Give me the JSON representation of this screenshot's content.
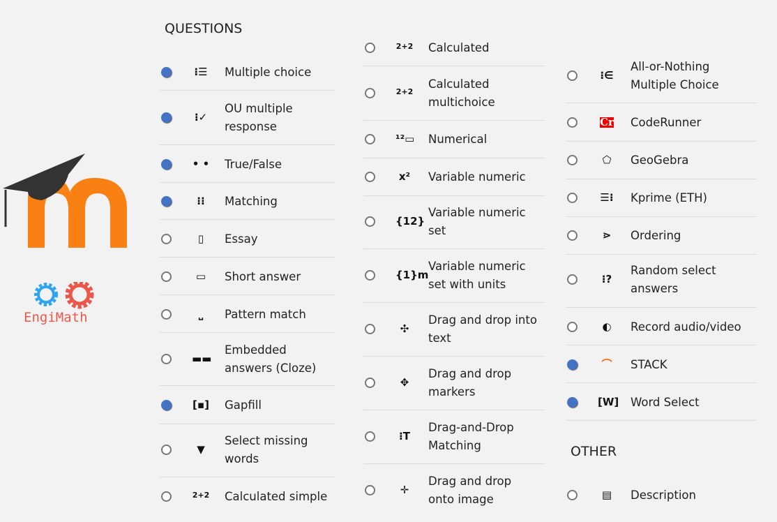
{
  "headers": {
    "questions": "QUESTIONS",
    "other": "OTHER"
  },
  "logos": {
    "moodle": "moodle",
    "engimath": "EngiMath"
  },
  "colors": {
    "selected": "#4472c4",
    "moodle_orange": "#f98012",
    "engimath_red": "#e8584b",
    "engimath_blue": "#2ea3f2"
  },
  "columns": [
    [
      {
        "label": "Multiple choice",
        "icon": "list-icon",
        "glyph": "⁝☰",
        "selected": true
      },
      {
        "label": "OU multiple response",
        "icon": "checklist-icon",
        "glyph": "⁝✓",
        "selected": true
      },
      {
        "label": "True/False",
        "icon": "two-dots-icon",
        "glyph": "• •",
        "selected": true
      },
      {
        "label": "Matching",
        "icon": "matching-icon",
        "glyph": "⁝⁝",
        "selected": true
      },
      {
        "label": "Essay",
        "icon": "document-icon",
        "glyph": "▯",
        "selected": false
      },
      {
        "label": "Short answer",
        "icon": "textbox-icon",
        "glyph": "▭",
        "selected": false
      },
      {
        "label": "Pattern match",
        "icon": "pattern-icon",
        "glyph": "⎵",
        "selected": false
      },
      {
        "label": "Embedded answers (Cloze)",
        "icon": "cloze-icon",
        "glyph": "▬▬",
        "selected": false
      },
      {
        "label": "Gapfill",
        "icon": "gapfill-icon",
        "glyph": "[▪]",
        "selected": true
      },
      {
        "label": "Select missing words",
        "icon": "triangle-down-icon",
        "glyph": "▼",
        "selected": false
      },
      {
        "label": "Calculated simple",
        "icon": "calculated-icon",
        "glyph": "2+2",
        "selected": false
      }
    ],
    [
      {
        "label": "Calculated",
        "icon": "calculated-icon",
        "glyph": "2+2",
        "selected": false
      },
      {
        "label": "Calculated multichoice",
        "icon": "calculated-icon",
        "glyph": "2+2",
        "selected": false
      },
      {
        "label": "Numerical",
        "icon": "numerical-icon",
        "glyph": "¹²▭",
        "selected": false
      },
      {
        "label": "Variable numeric",
        "icon": "variable-numeric-icon",
        "glyph": "x²",
        "selected": false
      },
      {
        "label": "Variable numeric set",
        "icon": "variable-set-icon",
        "glyph": "{12}",
        "selected": false
      },
      {
        "label": "Variable numeric set with units",
        "icon": "variable-units-icon",
        "glyph": "{1}m",
        "selected": false
      },
      {
        "label": "Drag and drop into text",
        "icon": "move-icon",
        "glyph": "✣",
        "selected": false
      },
      {
        "label": "Drag and drop markers",
        "icon": "markers-icon",
        "glyph": "✥",
        "selected": false
      },
      {
        "label": "Drag-and-Drop Matching",
        "icon": "dd-matching-icon",
        "glyph": "⁝T",
        "selected": false
      },
      {
        "label": "Drag and drop onto image",
        "icon": "move-arrows-icon",
        "glyph": "✛",
        "selected": false
      }
    ],
    [
      {
        "label": "All-or-Nothing Multiple Choice",
        "icon": "element-of-icon",
        "glyph": "⁝∈",
        "selected": false
      },
      {
        "label": "CodeRunner",
        "icon": "coderunner-icon",
        "glyph": "Cr",
        "selected": false
      },
      {
        "label": "GeoGebra",
        "icon": "geogebra-icon",
        "glyph": "⬠",
        "selected": false
      },
      {
        "label": "Kprime (ETH)",
        "icon": "kprime-icon",
        "glyph": "☰⁝",
        "selected": false
      },
      {
        "label": "Ordering",
        "icon": "ordering-icon",
        "glyph": "⋗",
        "selected": false
      },
      {
        "label": "Random select answers",
        "icon": "random-icon",
        "glyph": "⁝?",
        "selected": false
      },
      {
        "label": "Record audio/video",
        "icon": "record-icon",
        "glyph": "◐",
        "selected": false
      },
      {
        "label": "STACK",
        "icon": "stack-icon",
        "glyph": "⌒",
        "selected": true
      },
      {
        "label": "Word Select",
        "icon": "word-select-icon",
        "glyph": "[W]",
        "selected": true
      }
    ]
  ],
  "other": [
    {
      "label": "Description",
      "icon": "description-icon",
      "glyph": "▤",
      "selected": false
    }
  ]
}
